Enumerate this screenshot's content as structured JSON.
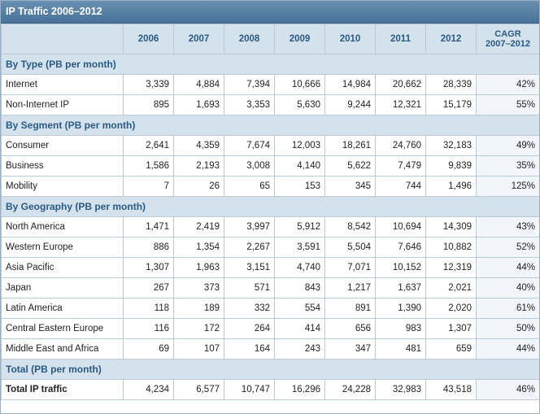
{
  "title": "IP Traffic 2006–2012",
  "colors": {
    "header_bg": "#d4e2ee",
    "title_bar": "#47729a",
    "header_text": "#2a5a84",
    "pct_text": "#2e6fa8"
  },
  "chart_data": {
    "type": "table",
    "title": "IP Traffic 2006–2012",
    "columns": [
      "2006",
      "2007",
      "2008",
      "2009",
      "2010",
      "2011",
      "2012"
    ],
    "cagr_header": [
      "CAGR",
      "2007–2012"
    ],
    "sections": [
      {
        "label": "By Type (PB per month)",
        "rows": [
          {
            "label": "Internet",
            "values": [
              "3,339",
              "4,884",
              "7,394",
              "10,666",
              "14,984",
              "20,662",
              "28,339"
            ],
            "cagr": "42%"
          },
          {
            "label": "Non-Internet IP",
            "values": [
              "895",
              "1,693",
              "3,353",
              "5,630",
              "9,244",
              "12,321",
              "15,179"
            ],
            "cagr": "55%"
          }
        ]
      },
      {
        "label": "By Segment (PB per month)",
        "rows": [
          {
            "label": "Consumer",
            "values": [
              "2,641",
              "4,359",
              "7,674",
              "12,003",
              "18,261",
              "24,760",
              "32,183"
            ],
            "cagr": "49%"
          },
          {
            "label": "Business",
            "values": [
              "1,586",
              "2,193",
              "3,008",
              "4,140",
              "5,622",
              "7,479",
              "9,839"
            ],
            "cagr": "35%"
          },
          {
            "label": "Mobility",
            "values": [
              "7",
              "26",
              "65",
              "153",
              "345",
              "744",
              "1,496"
            ],
            "cagr": "125%"
          }
        ]
      },
      {
        "label": "By Geography (PB per month)",
        "rows": [
          {
            "label": "North America",
            "values": [
              "1,471",
              "2,419",
              "3,997",
              "5,912",
              "8,542",
              "10,694",
              "14,309"
            ],
            "cagr": "43%"
          },
          {
            "label": "Western Europe",
            "values": [
              "886",
              "1,354",
              "2,267",
              "3,591",
              "5,504",
              "7,646",
              "10,882"
            ],
            "cagr": "52%"
          },
          {
            "label": "Asia Pacific",
            "values": [
              "1,307",
              "1,963",
              "3,151",
              "4,740",
              "7,071",
              "10,152",
              "12,319"
            ],
            "cagr": "44%"
          },
          {
            "label": "Japan",
            "values": [
              "267",
              "373",
              "571",
              "843",
              "1,217",
              "1,637",
              "2,021"
            ],
            "cagr": "40%"
          },
          {
            "label": "Latin America",
            "values": [
              "118",
              "189",
              "332",
              "554",
              "891",
              "1,390",
              "2,020"
            ],
            "cagr": "61%"
          },
          {
            "label": "Central Eastern Europe",
            "values": [
              "116",
              "172",
              "264",
              "414",
              "656",
              "983",
              "1,307"
            ],
            "cagr": "50%"
          },
          {
            "label": "Middle East and Africa",
            "values": [
              "69",
              "107",
              "164",
              "243",
              "347",
              "481",
              "659"
            ],
            "cagr": "44%"
          }
        ]
      },
      {
        "label": "Total (PB per month)",
        "rows": [
          {
            "label": "Total IP traffic",
            "values": [
              "4,234",
              "6,577",
              "10,747",
              "16,296",
              "24,228",
              "32,983",
              "43,518"
            ],
            "cagr": "46%",
            "bold": true
          }
        ]
      }
    ]
  }
}
